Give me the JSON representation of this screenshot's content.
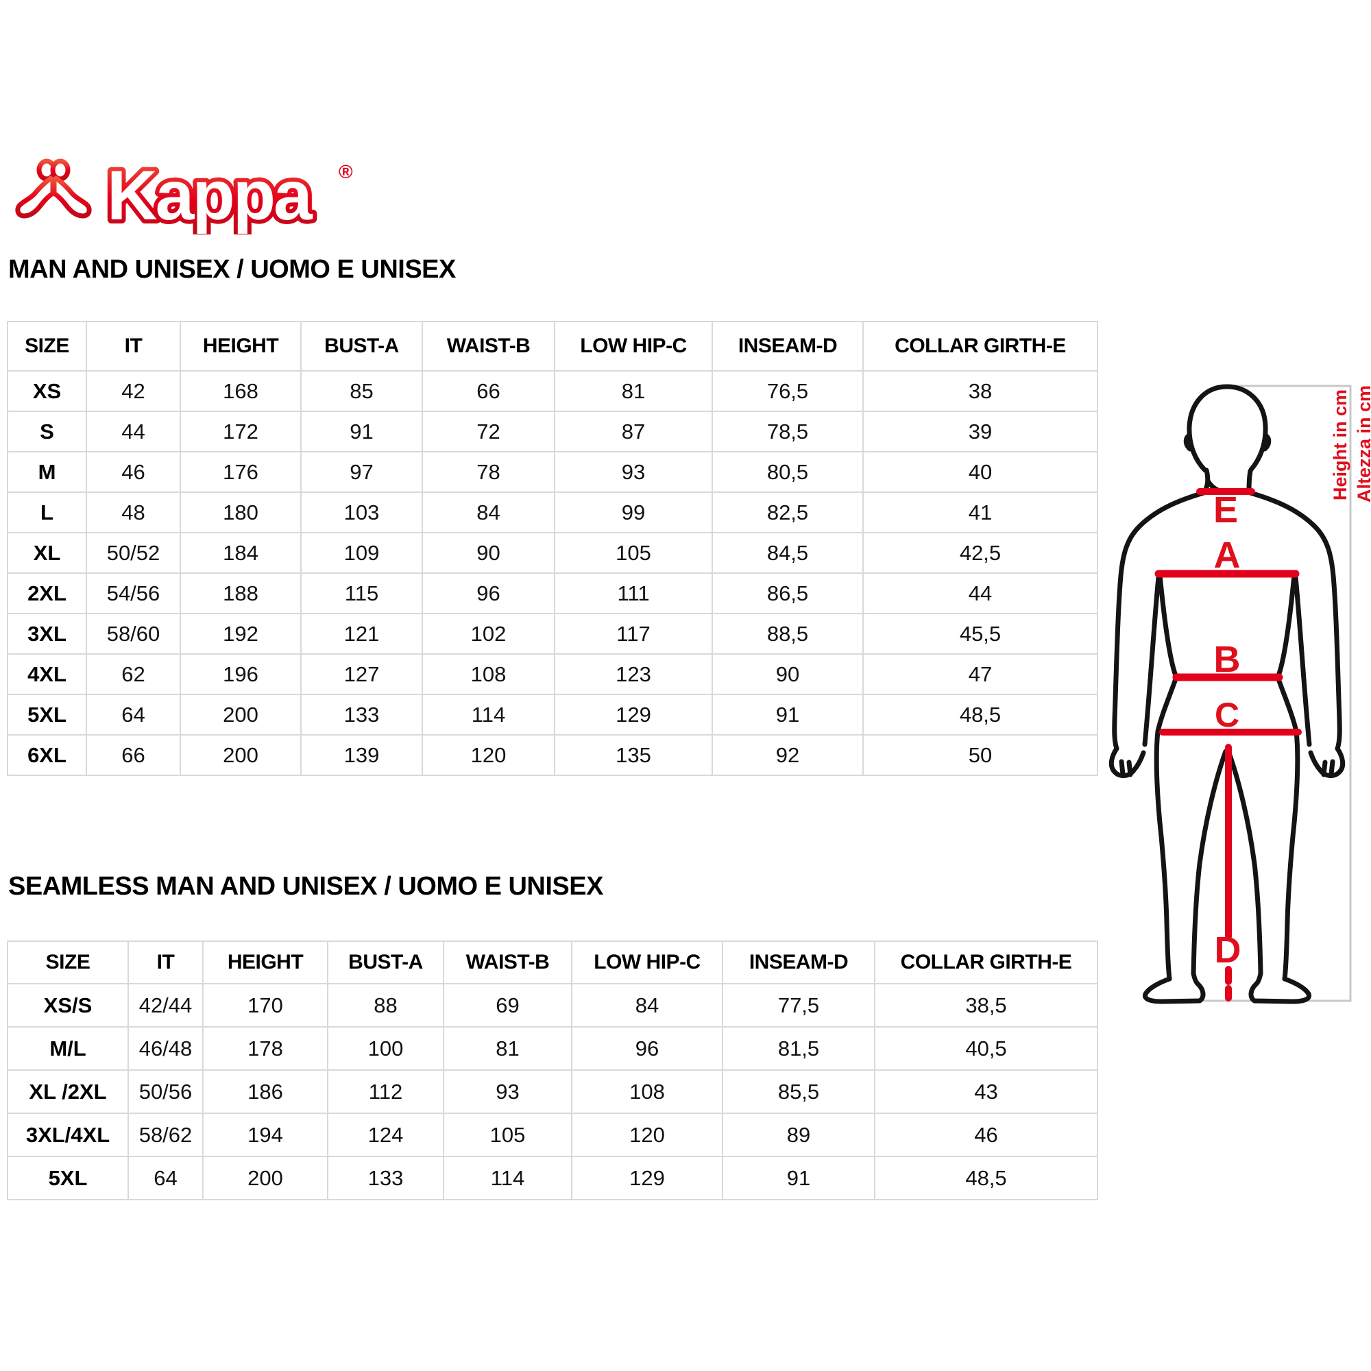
{
  "logo": {
    "brand": "Kappa",
    "registered": "®"
  },
  "accent_color": "#e2001a",
  "tables": [
    {
      "title": "MAN AND UNISEX / UOMO E UNISEX",
      "headers": [
        "SIZE",
        "IT",
        "HEIGHT",
        "BUST-A",
        "WAIST-B",
        "LOW HIP-C",
        "INSEAM-D",
        "COLLAR GIRTH-E"
      ],
      "rows": [
        [
          "XS",
          "42",
          "168",
          "85",
          "66",
          "81",
          "76,5",
          "38"
        ],
        [
          "S",
          "44",
          "172",
          "91",
          "72",
          "87",
          "78,5",
          "39"
        ],
        [
          "M",
          "46",
          "176",
          "97",
          "78",
          "93",
          "80,5",
          "40"
        ],
        [
          "L",
          "48",
          "180",
          "103",
          "84",
          "99",
          "82,5",
          "41"
        ],
        [
          "XL",
          "50/52",
          "184",
          "109",
          "90",
          "105",
          "84,5",
          "42,5"
        ],
        [
          "2XL",
          "54/56",
          "188",
          "115",
          "96",
          "111",
          "86,5",
          "44"
        ],
        [
          "3XL",
          "58/60",
          "192",
          "121",
          "102",
          "117",
          "88,5",
          "45,5"
        ],
        [
          "4XL",
          "62",
          "196",
          "127",
          "108",
          "123",
          "90",
          "47"
        ],
        [
          "5XL",
          "64",
          "200",
          "133",
          "114",
          "129",
          "91",
          "48,5"
        ],
        [
          "6XL",
          "66",
          "200",
          "139",
          "120",
          "135",
          "92",
          "50"
        ]
      ]
    },
    {
      "title": "SEAMLESS MAN AND UNISEX / UOMO E UNISEX",
      "headers": [
        "SIZE",
        "IT",
        "HEIGHT",
        "BUST-A",
        "WAIST-B",
        "LOW HIP-C",
        "INSEAM-D",
        "COLLAR GIRTH-E"
      ],
      "rows": [
        [
          "XS/S",
          "42/44",
          "170",
          "88",
          "69",
          "84",
          "77,5",
          "38,5"
        ],
        [
          "M/L",
          "46/48",
          "178",
          "100",
          "81",
          "96",
          "81,5",
          "40,5"
        ],
        [
          "XL /2XL",
          "50/56",
          "186",
          "112",
          "93",
          "108",
          "85,5",
          "43"
        ],
        [
          "3XL/4XL",
          "58/62",
          "194",
          "124",
          "105",
          "120",
          "89",
          "46"
        ],
        [
          "5XL",
          "64",
          "200",
          "133",
          "114",
          "129",
          "91",
          "48,5"
        ]
      ]
    }
  ],
  "diagram": {
    "labels": {
      "collar": "E",
      "bust": "A",
      "waist": "B",
      "low_hip": "C",
      "inseam": "D"
    },
    "height_note_en": "Height in cm",
    "height_note_it": "Altezza in cm"
  }
}
